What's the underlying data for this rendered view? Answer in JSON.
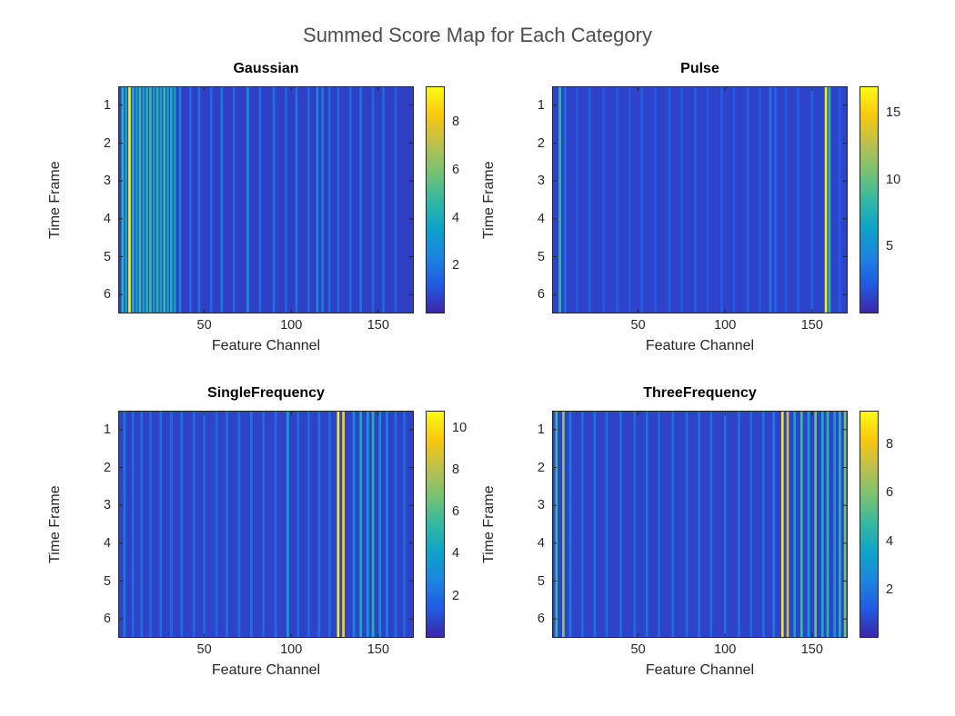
{
  "figure_title": "Summed Score Map for Each Category",
  "colormap": {
    "name": "parula",
    "stops": [
      [
        0,
        "#3E26A8"
      ],
      [
        0.125,
        "#215AE2"
      ],
      [
        0.25,
        "#1C84DF"
      ],
      [
        0.375,
        "#0EA3C9"
      ],
      [
        0.5,
        "#33B8A1"
      ],
      [
        0.625,
        "#78C273"
      ],
      [
        0.75,
        "#BDC04E"
      ],
      [
        0.875,
        "#F9C80E"
      ],
      [
        1,
        "#F9FB14"
      ]
    ]
  },
  "chart_data": [
    {
      "type": "heatmap",
      "title": "Gaussian",
      "xlabel": "Feature Channel",
      "ylabel": "Time Frame",
      "x_range": [
        1,
        170
      ],
      "xticks": [
        50,
        100,
        150
      ],
      "yticks": [
        1,
        2,
        3,
        4,
        5,
        6
      ],
      "colorbar": {
        "min": 0,
        "max": 9.5,
        "ticks": [
          2,
          4,
          6,
          8
        ]
      },
      "base_value": 0.6,
      "stripes": [
        {
          "c": 3,
          "v": 4.5
        },
        {
          "c": 5,
          "v": 3.6
        },
        {
          "c": 7,
          "v": 9.3
        },
        {
          "c": 9,
          "v": 4.2
        },
        {
          "c": 11,
          "v": 3.4
        },
        {
          "c": 13,
          "v": 4.8
        },
        {
          "c": 15,
          "v": 3.5
        },
        {
          "c": 17,
          "v": 4.4
        },
        {
          "c": 19,
          "v": 5.0
        },
        {
          "c": 21,
          "v": 3.3
        },
        {
          "c": 23,
          "v": 4.6
        },
        {
          "c": 25,
          "v": 3.7
        },
        {
          "c": 27,
          "v": 4.9
        },
        {
          "c": 29,
          "v": 3.4
        },
        {
          "c": 31,
          "v": 4.3
        },
        {
          "c": 33,
          "v": 3.6
        },
        {
          "c": 36,
          "v": 2.2
        },
        {
          "c": 42,
          "v": 1.6
        },
        {
          "c": 47,
          "v": 1.9
        },
        {
          "c": 54,
          "v": 1.5
        },
        {
          "c": 60,
          "v": 2.0
        },
        {
          "c": 67,
          "v": 1.5
        },
        {
          "c": 75,
          "v": 2.6
        },
        {
          "c": 82,
          "v": 1.5
        },
        {
          "c": 90,
          "v": 1.8
        },
        {
          "c": 97,
          "v": 1.5
        },
        {
          "c": 103,
          "v": 1.9
        },
        {
          "c": 110,
          "v": 1.6
        },
        {
          "c": 115,
          "v": 2.5
        },
        {
          "c": 118,
          "v": 2.1
        },
        {
          "c": 122,
          "v": 1.7
        },
        {
          "c": 127,
          "v": 1.5
        },
        {
          "c": 134,
          "v": 1.6
        },
        {
          "c": 140,
          "v": 2.0
        },
        {
          "c": 147,
          "v": 1.5
        },
        {
          "c": 153,
          "v": 1.7
        },
        {
          "c": 160,
          "v": 1.4
        }
      ]
    },
    {
      "type": "heatmap",
      "title": "Pulse",
      "xlabel": "Feature Channel",
      "ylabel": "Time Frame",
      "x_range": [
        1,
        170
      ],
      "xticks": [
        50,
        100,
        150
      ],
      "yticks": [
        1,
        2,
        3,
        4,
        5,
        6
      ],
      "colorbar": {
        "min": 0,
        "max": 17,
        "ticks": [
          5,
          10,
          15
        ]
      },
      "base_value": 1.2,
      "stripes": [
        {
          "c": 5,
          "v": 8.5
        },
        {
          "c": 8,
          "v": 3.0
        },
        {
          "c": 15,
          "v": 2.2
        },
        {
          "c": 22,
          "v": 2.6
        },
        {
          "c": 30,
          "v": 2.1
        },
        {
          "c": 38,
          "v": 2.4
        },
        {
          "c": 45,
          "v": 2.1
        },
        {
          "c": 52,
          "v": 2.5
        },
        {
          "c": 60,
          "v": 2.1
        },
        {
          "c": 68,
          "v": 2.3
        },
        {
          "c": 75,
          "v": 2.1
        },
        {
          "c": 83,
          "v": 2.4
        },
        {
          "c": 90,
          "v": 2.1
        },
        {
          "c": 98,
          "v": 2.3
        },
        {
          "c": 105,
          "v": 2.1
        },
        {
          "c": 113,
          "v": 2.5
        },
        {
          "c": 120,
          "v": 2.2
        },
        {
          "c": 126,
          "v": 3.4
        },
        {
          "c": 129,
          "v": 2.6
        },
        {
          "c": 135,
          "v": 2.1
        },
        {
          "c": 142,
          "v": 2.3
        },
        {
          "c": 150,
          "v": 2.6
        },
        {
          "c": 158,
          "v": 16.5
        },
        {
          "c": 160,
          "v": 8.0
        },
        {
          "c": 166,
          "v": 2.2
        }
      ]
    },
    {
      "type": "heatmap",
      "title": "SingleFrequency",
      "xlabel": "Feature Channel",
      "ylabel": "Time Frame",
      "x_range": [
        1,
        170
      ],
      "xticks": [
        50,
        100,
        150
      ],
      "yticks": [
        1,
        2,
        3,
        4,
        5,
        6
      ],
      "colorbar": {
        "min": 0,
        "max": 10.8,
        "ticks": [
          2,
          4,
          6,
          8,
          10
        ]
      },
      "base_value": 0.75,
      "stripes": [
        {
          "c": 4,
          "v": 2.2
        },
        {
          "c": 9,
          "v": 1.8
        },
        {
          "c": 14,
          "v": 2.0
        },
        {
          "c": 19,
          "v": 1.7
        },
        {
          "c": 25,
          "v": 2.1
        },
        {
          "c": 31,
          "v": 1.8
        },
        {
          "c": 37,
          "v": 2.0
        },
        {
          "c": 44,
          "v": 1.7
        },
        {
          "c": 50,
          "v": 1.9
        },
        {
          "c": 57,
          "v": 1.7
        },
        {
          "c": 63,
          "v": 2.0
        },
        {
          "c": 70,
          "v": 1.8
        },
        {
          "c": 77,
          "v": 2.1
        },
        {
          "c": 84,
          "v": 1.8
        },
        {
          "c": 91,
          "v": 1.9
        },
        {
          "c": 98,
          "v": 3.9
        },
        {
          "c": 104,
          "v": 1.9
        },
        {
          "c": 110,
          "v": 1.8
        },
        {
          "c": 116,
          "v": 2.0
        },
        {
          "c": 122,
          "v": 1.8
        },
        {
          "c": 127,
          "v": 10.5
        },
        {
          "c": 130,
          "v": 9.8
        },
        {
          "c": 136,
          "v": 2.6
        },
        {
          "c": 140,
          "v": 4.6
        },
        {
          "c": 144,
          "v": 3.5
        },
        {
          "c": 147,
          "v": 4.9
        },
        {
          "c": 151,
          "v": 3.2
        },
        {
          "c": 155,
          "v": 2.6
        },
        {
          "c": 160,
          "v": 2.0
        },
        {
          "c": 165,
          "v": 1.8
        }
      ]
    },
    {
      "type": "heatmap",
      "title": "ThreeFrequency",
      "xlabel": "Feature Channel",
      "ylabel": "Time Frame",
      "x_range": [
        1,
        170
      ],
      "xticks": [
        50,
        100,
        150
      ],
      "yticks": [
        1,
        2,
        3,
        4,
        5,
        6
      ],
      "colorbar": {
        "min": 0,
        "max": 9.4,
        "ticks": [
          2,
          4,
          6,
          8
        ]
      },
      "base_value": 0.65,
      "stripes": [
        {
          "c": 3,
          "v": 4.8
        },
        {
          "c": 7,
          "v": 6.2
        },
        {
          "c": 11,
          "v": 2.0
        },
        {
          "c": 18,
          "v": 1.6
        },
        {
          "c": 25,
          "v": 1.8
        },
        {
          "c": 32,
          "v": 1.6
        },
        {
          "c": 40,
          "v": 1.7
        },
        {
          "c": 48,
          "v": 1.6
        },
        {
          "c": 55,
          "v": 1.8
        },
        {
          "c": 62,
          "v": 1.6
        },
        {
          "c": 70,
          "v": 1.7
        },
        {
          "c": 78,
          "v": 1.6
        },
        {
          "c": 85,
          "v": 1.8
        },
        {
          "c": 92,
          "v": 1.6
        },
        {
          "c": 100,
          "v": 1.7
        },
        {
          "c": 108,
          "v": 1.8
        },
        {
          "c": 115,
          "v": 1.6
        },
        {
          "c": 122,
          "v": 1.8
        },
        {
          "c": 128,
          "v": 2.1
        },
        {
          "c": 133,
          "v": 8.9
        },
        {
          "c": 136,
          "v": 7.4
        },
        {
          "c": 140,
          "v": 3.6
        },
        {
          "c": 144,
          "v": 4.9
        },
        {
          "c": 148,
          "v": 3.2
        },
        {
          "c": 152,
          "v": 5.6
        },
        {
          "c": 156,
          "v": 3.9
        },
        {
          "c": 159,
          "v": 4.6
        },
        {
          "c": 163,
          "v": 3.1
        },
        {
          "c": 166,
          "v": 4.3
        },
        {
          "c": 169,
          "v": 5.8
        }
      ]
    }
  ]
}
